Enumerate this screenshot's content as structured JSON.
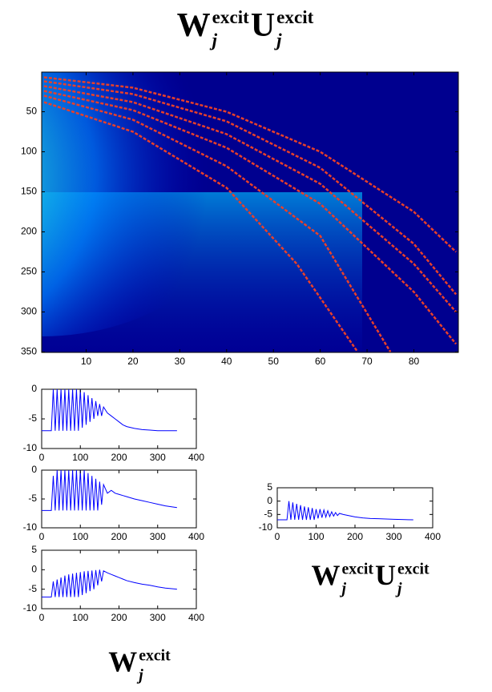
{
  "labels": [
    {
      "terms": [
        {
          "base": "W",
          "sup": "excit",
          "sub": "j"
        },
        {
          "base": "U",
          "sup": "excit",
          "sub": "j"
        }
      ]
    },
    {
      "terms": [
        {
          "base": "W",
          "sup": "excit",
          "sub": "j"
        },
        {
          "base": "U",
          "sup": "excit",
          "sub": "j"
        }
      ]
    },
    {
      "terms": [
        {
          "base": "W",
          "sup": "excit",
          "sub": "j"
        }
      ]
    }
  ],
  "chart_data": [
    {
      "type": "heatmap",
      "background": "#00008f",
      "ridge_color": "#e8402a",
      "xlim": [
        0.5,
        89.5
      ],
      "ylim": [
        0.5,
        350.5
      ],
      "y_reversed": true,
      "xticks": [
        10,
        20,
        30,
        40,
        50,
        60,
        70,
        80
      ],
      "yticks": [
        50,
        100,
        150,
        200,
        250,
        300,
        350
      ],
      "ridges": [
        {
          "x": [
            1,
            20,
            40,
            60,
            80,
            89
          ],
          "y": [
            7,
            20,
            50,
            100,
            175,
            225
          ]
        },
        {
          "x": [
            1,
            20,
            40,
            60,
            80,
            89
          ],
          "y": [
            12,
            28,
            62,
            120,
            215,
            278
          ]
        },
        {
          "x": [
            1,
            20,
            40,
            60,
            80,
            89
          ],
          "y": [
            18,
            38,
            78,
            140,
            240,
            300
          ]
        },
        {
          "x": [
            1,
            20,
            40,
            60,
            80,
            89
          ],
          "y": [
            24,
            48,
            95,
            165,
            275,
            340
          ]
        },
        {
          "x": [
            1,
            20,
            40,
            60,
            75
          ],
          "y": [
            30,
            60,
            118,
            205,
            350
          ]
        },
        {
          "x": [
            1,
            20,
            40,
            55,
            68
          ],
          "y": [
            38,
            75,
            145,
            240,
            350
          ]
        }
      ]
    },
    {
      "type": "line",
      "color": "#0000ff",
      "xlim": [
        0,
        400
      ],
      "ylim": [
        -10,
        0
      ],
      "xticks": [
        0,
        100,
        200,
        300,
        400
      ],
      "yticks": [
        -10,
        -5,
        0
      ],
      "x": [
        0,
        25,
        30,
        35,
        40,
        45,
        50,
        55,
        60,
        65,
        70,
        75,
        80,
        85,
        90,
        95,
        100,
        105,
        110,
        115,
        120,
        125,
        130,
        135,
        140,
        145,
        150,
        155,
        160,
        170,
        180,
        190,
        200,
        210,
        220,
        240,
        260,
        280,
        300,
        320,
        350
      ],
      "values": [
        -7,
        -7,
        0,
        -7,
        0,
        -7,
        0,
        -7,
        0,
        -7,
        0,
        -7,
        0,
        -7,
        0,
        -7,
        0,
        -6.5,
        -0.5,
        -6,
        -1,
        -5.5,
        -1.5,
        -5,
        -2,
        -4.5,
        -2.5,
        -4.5,
        -3,
        -4,
        -4.5,
        -5,
        -5.5,
        -6,
        -6.3,
        -6.6,
        -6.8,
        -6.9,
        -7,
        -7,
        -7
      ]
    },
    {
      "type": "line",
      "color": "#0000ff",
      "xlim": [
        0,
        400
      ],
      "ylim": [
        -10,
        0
      ],
      "xticks": [
        0,
        100,
        200,
        300,
        400
      ],
      "yticks": [
        -10,
        -5,
        0
      ],
      "x": [
        0,
        25,
        30,
        35,
        40,
        45,
        50,
        55,
        60,
        65,
        70,
        75,
        80,
        85,
        90,
        95,
        100,
        105,
        110,
        115,
        120,
        125,
        130,
        135,
        140,
        145,
        150,
        155,
        160,
        170,
        180,
        190,
        200,
        210,
        220,
        240,
        260,
        280,
        300,
        320,
        350
      ],
      "values": [
        -7,
        -7,
        -1,
        -7,
        0,
        -7,
        0,
        -7,
        0,
        -7,
        0,
        -7,
        0,
        -7,
        0,
        -7,
        0,
        -7,
        0,
        -7,
        -0.5,
        -7,
        -1,
        -7,
        -1.5,
        -7,
        -2,
        -6,
        -2.5,
        -4,
        -3.5,
        -4,
        -4.2,
        -4.4,
        -4.6,
        -5,
        -5.3,
        -5.6,
        -5.9,
        -6.2,
        -6.5
      ]
    },
    {
      "type": "line",
      "color": "#0000ff",
      "xlim": [
        0,
        400
      ],
      "ylim": [
        -10,
        5
      ],
      "xticks": [
        0,
        100,
        200,
        300,
        400
      ],
      "yticks": [
        -10,
        -5,
        0,
        5
      ],
      "x": [
        0,
        25,
        30,
        35,
        40,
        45,
        50,
        55,
        60,
        65,
        70,
        75,
        80,
        85,
        90,
        95,
        100,
        105,
        110,
        115,
        120,
        125,
        130,
        135,
        140,
        145,
        150,
        155,
        160,
        170,
        180,
        190,
        200,
        210,
        220,
        240,
        260,
        280,
        300,
        320,
        350
      ],
      "values": [
        -7,
        -7,
        0,
        -7,
        -0.5,
        -7,
        -1,
        -7,
        -1.5,
        -7,
        -2,
        -7,
        -2.3,
        -7,
        -2.6,
        -7,
        -3,
        -6.5,
        -3,
        -6.2,
        -3.3,
        -6,
        -3.6,
        -5.8,
        -4,
        -5.6,
        -4.3,
        -5.4,
        -4.6,
        -5,
        -5.3,
        -5.6,
        -5.9,
        -6.1,
        -6.3,
        -6.5,
        -6.6,
        -6.7,
        -6.8,
        -6.9,
        -7
      ]
    },
    {
      "type": "line",
      "color": "#0000ff",
      "xlim": [
        0,
        400
      ],
      "ylim": [
        -10,
        5
      ],
      "xticks": [
        0,
        100,
        200,
        300,
        400
      ],
      "yticks": [
        -10,
        -5,
        0,
        5
      ],
      "x": [
        0,
        25,
        30,
        35,
        40,
        45,
        50,
        55,
        60,
        65,
        70,
        75,
        80,
        85,
        90,
        95,
        100,
        105,
        110,
        115,
        120,
        125,
        130,
        135,
        140,
        145,
        150,
        155,
        160,
        170,
        180,
        190,
        200,
        210,
        220,
        240,
        260,
        280,
        300,
        320,
        350
      ],
      "values": [
        -7,
        -7,
        -3,
        -7,
        -2.5,
        -7,
        -2,
        -7,
        -1.5,
        -7,
        -1.2,
        -7,
        -1,
        -7,
        -0.8,
        -7,
        -0.6,
        -6.5,
        -0.4,
        -6,
        -0.3,
        -5.5,
        -0.2,
        -5,
        -0.1,
        -4,
        0,
        -3,
        -0.3,
        -0.8,
        -1.2,
        -1.6,
        -2,
        -2.4,
        -2.8,
        -3.3,
        -3.7,
        -4,
        -4.4,
        -4.7,
        -5
      ]
    }
  ]
}
